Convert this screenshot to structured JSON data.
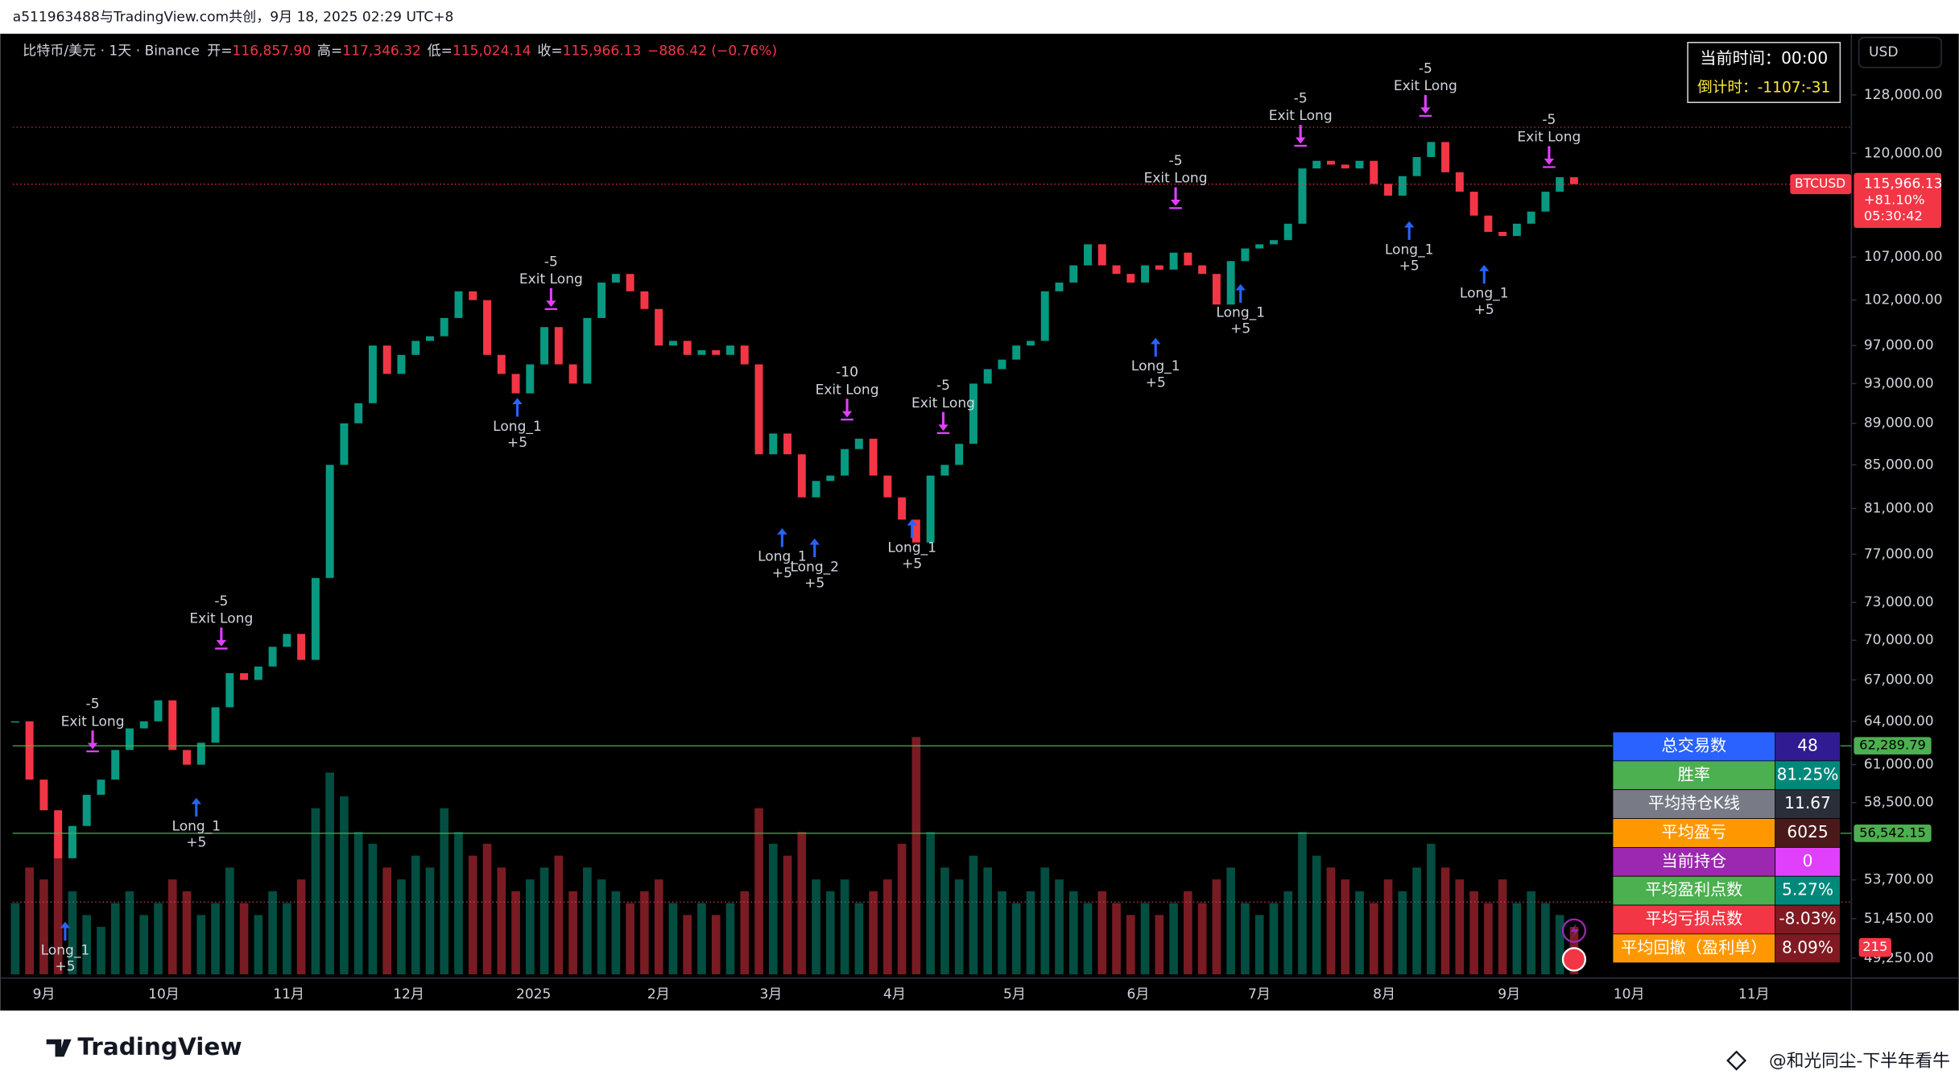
{
  "header": {
    "text": "a511963488与TradingView.com共创，9月 18, 2025 02:29 UTC+8"
  },
  "legend": {
    "symbol": "比特币/美元 · 1天 · Binance",
    "ohlc": [
      {
        "label": "开=",
        "value": "116,857.90"
      },
      {
        "label": "高=",
        "value": "117,346.32"
      },
      {
        "label": "低=",
        "value": "115,024.14"
      },
      {
        "label": "收=",
        "value": "115,966.13"
      }
    ],
    "change": "−886.42 (−0.76%)"
  },
  "clock": {
    "time_label": "当前时间：",
    "time": "00:00",
    "countdown_label": "倒计时：",
    "countdown": "-1107:-31"
  },
  "currency": "USD",
  "chart_data": {
    "type": "candlestick",
    "log_scale": true,
    "ylim": [
      48170,
      136780
    ],
    "yticks": [
      {
        "value": 128000,
        "label": "128,000.00"
      },
      {
        "value": 120000,
        "label": "120,000.00"
      },
      {
        "value": 107000,
        "label": "107,000.00"
      },
      {
        "value": 102000,
        "label": "102,000.00"
      },
      {
        "value": 97000,
        "label": "97,000.00"
      },
      {
        "value": 93000,
        "label": "93,000.00"
      },
      {
        "value": 89000,
        "label": "89,000.00"
      },
      {
        "value": 85000,
        "label": "85,000.00"
      },
      {
        "value": 81000,
        "label": "81,000.00"
      },
      {
        "value": 77000,
        "label": "77,000.00"
      },
      {
        "value": 73000,
        "label": "73,000.00"
      },
      {
        "value": 70000,
        "label": "70,000.00"
      },
      {
        "value": 67000,
        "label": "67,000.00"
      },
      {
        "value": 64000,
        "label": "64,000.00"
      },
      {
        "value": 61000,
        "label": "61,000.00"
      },
      {
        "value": 58500,
        "label": "58,500.00"
      },
      {
        "value": 53700,
        "label": "53,700.00"
      },
      {
        "value": 51450,
        "label": "51,450.00"
      },
      {
        "value": 49250,
        "label": "49,250.00"
      }
    ],
    "xticks": [
      "9月",
      "10月",
      "11月",
      "12月",
      "2025",
      "2月",
      "3月",
      "4月",
      "5月",
      "6月",
      "7月",
      "8月",
      "9月",
      "10月",
      "11月"
    ],
    "up_color": "#089981",
    "down_color": "#f23645",
    "closes": [
      64000,
      60000,
      58000,
      55000,
      57000,
      59000,
      60000,
      62000,
      63500,
      64000,
      65500,
      62000,
      61000,
      62500,
      65000,
      67500,
      67000,
      68000,
      69500,
      70500,
      68500,
      75000,
      85000,
      89000,
      91000,
      97000,
      94000,
      96000,
      97500,
      98000,
      100000,
      103000,
      102000,
      96000,
      94000,
      92000,
      95000,
      99000,
      95000,
      93000,
      100000,
      104000,
      105000,
      103000,
      101000,
      97000,
      97500,
      96000,
      96500,
      96000,
      97000,
      95000,
      86000,
      88000,
      86000,
      82000,
      83500,
      84000,
      86500,
      87500,
      84000,
      82000,
      80000,
      78000,
      84000,
      85000,
      87000,
      93000,
      94500,
      95500,
      97000,
      97500,
      103000,
      104000,
      106000,
      108500,
      106000,
      105000,
      104000,
      106000,
      105500,
      107500,
      106000,
      105000,
      101500,
      106500,
      108000,
      108500,
      109000,
      111000,
      118000,
      119000,
      118500,
      118000,
      119000,
      116000,
      114500,
      117000,
      119500,
      121500,
      117500,
      115000,
      112000,
      110000,
      109500,
      111000,
      112500,
      115000,
      116857.9,
      115966.13
    ],
    "volumes": [
      30,
      45,
      40,
      60,
      35,
      25,
      20,
      30,
      35,
      25,
      30,
      40,
      35,
      25,
      30,
      45,
      30,
      25,
      35,
      30,
      40,
      70,
      85,
      75,
      60,
      55,
      45,
      40,
      50,
      45,
      70,
      60,
      50,
      55,
      45,
      35,
      40,
      45,
      50,
      35,
      45,
      40,
      35,
      30,
      35,
      40,
      30,
      25,
      30,
      25,
      30,
      35,
      70,
      55,
      50,
      60,
      40,
      35,
      40,
      30,
      35,
      40,
      55,
      100,
      60,
      45,
      40,
      50,
      45,
      35,
      30,
      35,
      45,
      40,
      35,
      30,
      35,
      30,
      25,
      30,
      25,
      30,
      35,
      30,
      40,
      45,
      30,
      25,
      30,
      35,
      60,
      50,
      45,
      40,
      35,
      30,
      40,
      35,
      45,
      55,
      45,
      40,
      35,
      30,
      40,
      30,
      35,
      30,
      25,
      20
    ],
    "vlim": [
      0,
      100
    ],
    "volume_label": 215,
    "last_price": {
      "value": 115966.13,
      "label": "115,966.13",
      "symbol": "BTCUSD",
      "change": "+81.10%",
      "countdown": "05:30:42"
    },
    "levels": [
      {
        "value": 62289.79,
        "label": "62,289.79"
      },
      {
        "value": 56542.15,
        "label": "56,542.15"
      }
    ],
    "dotted_levels": [
      123500,
      52400
    ],
    "signals": [
      {
        "kind": "long",
        "label": "Long_1",
        "qty": "+5",
        "price": 51270
      },
      {
        "kind": "exit",
        "label": "Exit Long",
        "qty": "-5",
        "price": 61970
      },
      {
        "kind": "long",
        "label": "Long_1",
        "qty": "+5",
        "price": 58800
      },
      {
        "kind": "exit",
        "label": "Exit Long",
        "qty": "-5",
        "price": 69440
      },
      {
        "kind": "long",
        "label": "Long_1",
        "qty": "+5",
        "price": 91530
      },
      {
        "kind": "exit",
        "label": "Exit Long",
        "qty": "-5",
        "price": 101100
      },
      {
        "kind": "long",
        "label": "Long_1",
        "qty": "+5",
        "price": 79250
      },
      {
        "kind": "long",
        "label": "Long_2",
        "qty": "+5",
        "price": 78350
      },
      {
        "kind": "exit",
        "label": "Exit Long",
        "qty": "-10",
        "price": 89460
      },
      {
        "kind": "long",
        "label": "Long_1",
        "qty": "+5",
        "price": 80040
      },
      {
        "kind": "exit",
        "label": "Exit Long",
        "qty": "-5",
        "price": 88140
      },
      {
        "kind": "long",
        "label": "Long_1",
        "qty": "+5",
        "price": 97830
      },
      {
        "kind": "exit",
        "label": "Exit Long",
        "qty": "-5",
        "price": 113050
      },
      {
        "kind": "long",
        "label": "Long_1",
        "qty": "+5",
        "price": 103830
      },
      {
        "kind": "exit",
        "label": "Exit Long",
        "qty": "-5",
        "price": 121120
      },
      {
        "kind": "long",
        "label": "Long_1",
        "qty": "+5",
        "price": 111300
      },
      {
        "kind": "exit",
        "label": "Exit Long",
        "qty": "-5",
        "price": 125200
      },
      {
        "kind": "long",
        "label": "Long_1",
        "qty": "+5",
        "price": 106050
      },
      {
        "kind": "exit",
        "label": "Exit Long",
        "qty": "-5",
        "price": 118300
      }
    ]
  },
  "table": {
    "rows": [
      [
        "总交易数",
        "48"
      ],
      [
        "胜率",
        "81.25%"
      ],
      [
        "平均持仓K线",
        "11.67"
      ],
      [
        "平均盈亏",
        "6025"
      ],
      [
        "当前持仓",
        "0"
      ],
      [
        "平均盈利点数",
        "5.27%"
      ],
      [
        "平均亏损点数",
        "-8.03%"
      ],
      [
        "平均回撤（盈利单）",
        "8.09%"
      ]
    ]
  },
  "footer": {
    "brand": "TradingView",
    "watermark": "@和光同尘-下半年看牛"
  }
}
